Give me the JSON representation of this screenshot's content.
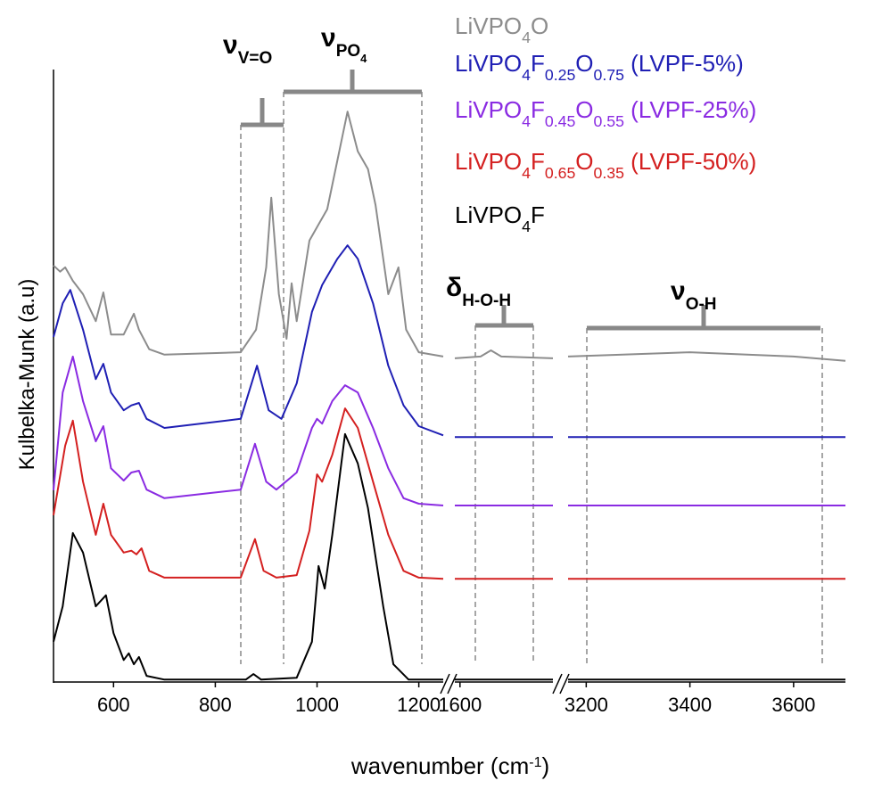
{
  "chart_data": {
    "type": "line",
    "ylabel": "Kulbelka-Munk (a.u)",
    "xlabel": [
      "wavenumber (cm",
      "-1",
      ")"
    ],
    "ylim": [
      0,
      100
    ],
    "xlim": [
      [
        482,
        1248
      ],
      [
        1590,
        1780
      ],
      [
        3165,
        3700
      ]
    ],
    "xticks": [
      [
        600,
        800,
        1000,
        1200
      ],
      [
        1600
      ],
      [
        3200,
        3400,
        3600
      ]
    ],
    "grid": false,
    "annotations": [
      {
        "symbol": "ν",
        "sub": "V=O"
      },
      {
        "symbol": "ν",
        "sub": "PO4"
      },
      {
        "symbol": "δ",
        "sub": "H-O-H"
      },
      {
        "symbol": "ν",
        "sub": "O-H"
      }
    ],
    "series": [
      {
        "name": "LiVPO4O",
        "color": "#8c8c8c",
        "x": [
          482,
          495,
          505,
          520,
          540,
          565,
          580,
          595,
          620,
          640,
          650,
          670,
          700,
          850,
          880,
          900,
          910,
          925,
          940,
          950,
          960,
          985,
          1000,
          1020,
          1040,
          1060,
          1080,
          1100,
          1115,
          1140,
          1160,
          1175,
          1200,
          1248,
          1590,
          1640,
          1660,
          1680,
          1780,
          3165,
          3400,
          3600,
          3700
        ],
        "values": [
          68.2,
          67.2,
          67.9,
          65.7,
          63.5,
          59.1,
          63.8,
          56.9,
          56.9,
          60.3,
          57.7,
          54.5,
          53.6,
          54.0,
          57.7,
          67.9,
          79.3,
          63.5,
          56.2,
          65.3,
          59.1,
          72.3,
          74.5,
          77.4,
          85.4,
          93.4,
          86.9,
          84.0,
          78.1,
          63.5,
          67.9,
          57.7,
          54.0,
          53.3,
          53.0,
          53.3,
          54.3,
          53.3,
          53.0,
          53.3,
          54.0,
          53.3,
          52.6
        ]
      },
      {
        "name": "LiVPO4F0.25O0.75 (LVPF-5%)",
        "color": "#1f1fb4",
        "x": [
          482,
          500,
          515,
          540,
          565,
          580,
          595,
          620,
          635,
          650,
          665,
          700,
          850,
          882,
          905,
          930,
          960,
          990,
          1010,
          1040,
          1060,
          1080,
          1110,
          1140,
          1170,
          1200,
          1248,
          1590,
          1780,
          3165,
          3700
        ],
        "values": [
          56.5,
          62.0,
          64.2,
          57.7,
          49.6,
          52.1,
          47.4,
          44.5,
          45.3,
          45.7,
          43.1,
          41.6,
          43.1,
          51.8,
          44.5,
          43.1,
          48.9,
          60.6,
          65.0,
          69.3,
          71.5,
          69.3,
          62.0,
          51.8,
          45.3,
          41.9,
          40.4,
          40.1,
          40.1,
          40.1,
          40.1
        ]
      },
      {
        "name": "LiVPO4F0.45O0.55 (LVPF-25%)",
        "color": "#8a2be2",
        "x": [
          482,
          500,
          520,
          540,
          565,
          580,
          595,
          620,
          635,
          650,
          665,
          700,
          850,
          878,
          900,
          920,
          960,
          990,
          1000,
          1010,
          1030,
          1055,
          1080,
          1110,
          1140,
          1170,
          1200,
          1248,
          1590,
          1780,
          3165,
          3700
        ],
        "values": [
          31.4,
          47.4,
          53.3,
          46.0,
          39.4,
          41.9,
          35.0,
          33.0,
          34.3,
          34.6,
          31.5,
          30.1,
          31.5,
          39.0,
          32.8,
          31.5,
          34.3,
          41.6,
          43.1,
          42.3,
          46.0,
          48.6,
          47.4,
          41.6,
          35.0,
          30.1,
          29.2,
          28.9,
          28.9,
          28.9,
          28.9,
          28.9
        ]
      },
      {
        "name": "LiVPO4F0.65O0.35 (LVPF-50%)",
        "color": "#d42020",
        "x": [
          482,
          505,
          520,
          540,
          565,
          580,
          595,
          620,
          635,
          645,
          655,
          670,
          700,
          850,
          878,
          895,
          920,
          960,
          985,
          1000,
          1010,
          1030,
          1055,
          1080,
          1110,
          1140,
          1170,
          1200,
          1248,
          1590,
          1780,
          3165,
          3700
        ],
        "values": [
          27.3,
          38.7,
          42.8,
          32.8,
          24.1,
          29.2,
          24.1,
          21.2,
          21.5,
          20.9,
          21.9,
          18.2,
          17.1,
          17.1,
          23.4,
          18.2,
          17.1,
          17.5,
          24.8,
          34.0,
          32.8,
          37.2,
          44.8,
          41.6,
          32.8,
          24.1,
          18.2,
          17.1,
          16.9,
          16.9,
          16.9,
          16.9,
          16.9
        ]
      },
      {
        "name": "LiVPO4F",
        "color": "#000000",
        "x": [
          482,
          500,
          520,
          540,
          565,
          585,
          600,
          620,
          630,
          640,
          650,
          665,
          700,
          860,
          875,
          890,
          960,
          990,
          1003,
          1015,
          1030,
          1055,
          1080,
          1100,
          1130,
          1150,
          1180,
          1248,
          1590,
          1780,
          3165,
          3700
        ],
        "values": [
          6.6,
          12.4,
          24.4,
          21.2,
          12.4,
          14.2,
          8.0,
          3.6,
          4.7,
          2.9,
          4.1,
          1.0,
          0.4,
          0.4,
          1.3,
          0.4,
          0.7,
          6.6,
          19.0,
          15.3,
          24.1,
          40.6,
          35.8,
          28.5,
          12.4,
          2.9,
          0.4,
          0.4,
          0.4,
          0.4,
          0.4,
          0.4
        ]
      }
    ]
  }
}
